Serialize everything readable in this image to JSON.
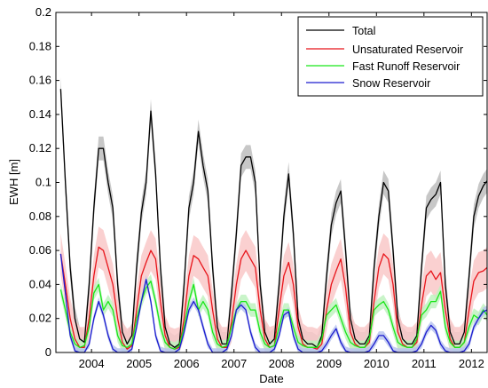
{
  "chart_data": {
    "type": "line",
    "xlabel": "Date",
    "ylabel": "EWH [m]",
    "xlim": [
      2003.25,
      2012.33
    ],
    "ylim": [
      0,
      0.2
    ],
    "x_ticks": [
      2004,
      2005,
      2006,
      2007,
      2008,
      2009,
      2010,
      2011,
      2012
    ],
    "y_ticks": [
      0,
      0.02,
      0.04,
      0.06,
      0.08,
      0.1,
      0.12,
      0.14,
      0.16,
      0.18,
      0.2
    ],
    "y_tick_labels": [
      "0",
      "0.02",
      "0.04",
      "0.06",
      "0.08",
      "0.1",
      "0.12",
      "0.14",
      "0.16",
      "0.18",
      "0.2"
    ],
    "grid": false,
    "legend_position": "top-right",
    "series": [
      {
        "name": "Total",
        "color": "#000000",
        "band_color": "#bdbdbd",
        "band_width": 0.007,
        "x": [
          2003.35,
          2003.45,
          2003.55,
          2003.65,
          2003.75,
          2003.85,
          2003.95,
          2004.05,
          2004.15,
          2004.25,
          2004.35,
          2004.45,
          2004.55,
          2004.65,
          2004.75,
          2004.85,
          2004.95,
          2005.05,
          2005.15,
          2005.25,
          2005.35,
          2005.45,
          2005.55,
          2005.65,
          2005.75,
          2005.85,
          2005.95,
          2006.05,
          2006.15,
          2006.25,
          2006.35,
          2006.45,
          2006.55,
          2006.65,
          2006.75,
          2006.85,
          2006.95,
          2007.05,
          2007.15,
          2007.25,
          2007.35,
          2007.45,
          2007.55,
          2007.65,
          2007.75,
          2007.85,
          2007.95,
          2008.05,
          2008.15,
          2008.25,
          2008.35,
          2008.45,
          2008.55,
          2008.65,
          2008.75,
          2008.85,
          2008.95,
          2009.05,
          2009.15,
          2009.25,
          2009.35,
          2009.45,
          2009.55,
          2009.65,
          2009.75,
          2009.85,
          2009.95,
          2010.05,
          2010.15,
          2010.25,
          2010.35,
          2010.45,
          2010.55,
          2010.65,
          2010.75,
          2010.85,
          2010.95,
          2011.05,
          2011.15,
          2011.25,
          2011.35,
          2011.45,
          2011.55,
          2011.65,
          2011.75,
          2011.85,
          2011.95,
          2012.05,
          2012.15,
          2012.25,
          2012.33
        ],
        "values": [
          0.155,
          0.1,
          0.05,
          0.02,
          0.008,
          0.006,
          0.04,
          0.085,
          0.12,
          0.12,
          0.1,
          0.085,
          0.04,
          0.012,
          0.005,
          0.01,
          0.05,
          0.082,
          0.1,
          0.142,
          0.105,
          0.05,
          0.015,
          0.005,
          0.003,
          0.005,
          0.04,
          0.085,
          0.1,
          0.13,
          0.11,
          0.095,
          0.05,
          0.015,
          0.005,
          0.005,
          0.035,
          0.07,
          0.11,
          0.115,
          0.115,
          0.1,
          0.04,
          0.012,
          0.005,
          0.008,
          0.04,
          0.08,
          0.105,
          0.07,
          0.02,
          0.008,
          0.005,
          0.005,
          0.003,
          0.01,
          0.045,
          0.075,
          0.088,
          0.095,
          0.06,
          0.02,
          0.008,
          0.005,
          0.005,
          0.01,
          0.05,
          0.08,
          0.1,
          0.095,
          0.06,
          0.02,
          0.008,
          0.005,
          0.005,
          0.01,
          0.05,
          0.085,
          0.09,
          0.093,
          0.1,
          0.04,
          0.012,
          0.005,
          0.005,
          0.012,
          0.045,
          0.08,
          0.092,
          0.098,
          0.101
        ]
      },
      {
        "name": "Unsaturated Reservoir",
        "color": "#e8141a",
        "band_color": "#f9c8c8",
        "band_width": 0.012,
        "x": [
          2003.35,
          2003.45,
          2003.55,
          2003.65,
          2003.75,
          2003.85,
          2003.95,
          2004.05,
          2004.15,
          2004.25,
          2004.35,
          2004.45,
          2004.55,
          2004.65,
          2004.75,
          2004.85,
          2004.95,
          2005.05,
          2005.15,
          2005.25,
          2005.35,
          2005.45,
          2005.55,
          2005.65,
          2005.75,
          2005.85,
          2005.95,
          2006.05,
          2006.15,
          2006.25,
          2006.35,
          2006.45,
          2006.55,
          2006.65,
          2006.75,
          2006.85,
          2006.95,
          2007.05,
          2007.15,
          2007.25,
          2007.35,
          2007.45,
          2007.55,
          2007.65,
          2007.75,
          2007.85,
          2007.95,
          2008.05,
          2008.15,
          2008.25,
          2008.35,
          2008.45,
          2008.55,
          2008.65,
          2008.75,
          2008.85,
          2008.95,
          2009.05,
          2009.15,
          2009.25,
          2009.35,
          2009.45,
          2009.55,
          2009.65,
          2009.75,
          2009.85,
          2009.95,
          2010.05,
          2010.15,
          2010.25,
          2010.35,
          2010.45,
          2010.55,
          2010.65,
          2010.75,
          2010.85,
          2010.95,
          2011.05,
          2011.15,
          2011.25,
          2011.35,
          2011.45,
          2011.55,
          2011.65,
          2011.75,
          2011.85,
          2011.95,
          2012.05,
          2012.15,
          2012.25,
          2012.33
        ],
        "values": [
          0.058,
          0.04,
          0.02,
          0.008,
          0.003,
          0.003,
          0.02,
          0.045,
          0.062,
          0.06,
          0.05,
          0.04,
          0.02,
          0.006,
          0.002,
          0.004,
          0.025,
          0.045,
          0.053,
          0.06,
          0.055,
          0.03,
          0.01,
          0.003,
          0.002,
          0.003,
          0.02,
          0.045,
          0.057,
          0.055,
          0.05,
          0.045,
          0.025,
          0.008,
          0.003,
          0.003,
          0.018,
          0.04,
          0.055,
          0.06,
          0.055,
          0.05,
          0.025,
          0.008,
          0.003,
          0.004,
          0.025,
          0.045,
          0.053,
          0.04,
          0.015,
          0.005,
          0.003,
          0.003,
          0.002,
          0.005,
          0.025,
          0.04,
          0.048,
          0.055,
          0.038,
          0.012,
          0.005,
          0.003,
          0.003,
          0.006,
          0.03,
          0.05,
          0.058,
          0.055,
          0.04,
          0.012,
          0.005,
          0.003,
          0.003,
          0.006,
          0.028,
          0.045,
          0.048,
          0.043,
          0.047,
          0.025,
          0.008,
          0.003,
          0.003,
          0.006,
          0.025,
          0.042,
          0.047,
          0.048,
          0.05
        ]
      },
      {
        "name": "Fast Runoff Reservoir",
        "color": "#19e619",
        "band_color": "#bff2bf",
        "band_width": 0.004,
        "x": [
          2003.35,
          2003.45,
          2003.55,
          2003.65,
          2003.75,
          2003.85,
          2003.95,
          2004.05,
          2004.15,
          2004.25,
          2004.35,
          2004.45,
          2004.55,
          2004.65,
          2004.75,
          2004.85,
          2004.95,
          2005.05,
          2005.15,
          2005.25,
          2005.35,
          2005.45,
          2005.55,
          2005.65,
          2005.75,
          2005.85,
          2005.95,
          2006.05,
          2006.15,
          2006.25,
          2006.35,
          2006.45,
          2006.55,
          2006.65,
          2006.75,
          2006.85,
          2006.95,
          2007.05,
          2007.15,
          2007.25,
          2007.35,
          2007.45,
          2007.55,
          2007.65,
          2007.75,
          2007.85,
          2007.95,
          2008.05,
          2008.15,
          2008.25,
          2008.35,
          2008.45,
          2008.55,
          2008.65,
          2008.75,
          2008.85,
          2008.95,
          2009.05,
          2009.15,
          2009.25,
          2009.35,
          2009.45,
          2009.55,
          2009.65,
          2009.75,
          2009.85,
          2009.95,
          2010.05,
          2010.15,
          2010.25,
          2010.35,
          2010.45,
          2010.55,
          2010.65,
          2010.75,
          2010.85,
          2010.95,
          2011.05,
          2011.15,
          2011.25,
          2011.35,
          2011.45,
          2011.55,
          2011.65,
          2011.75,
          2011.85,
          2011.95,
          2012.05,
          2012.15,
          2012.25,
          2012.33
        ],
        "values": [
          0.037,
          0.025,
          0.012,
          0.005,
          0.003,
          0.004,
          0.015,
          0.035,
          0.04,
          0.025,
          0.03,
          0.025,
          0.01,
          0.004,
          0.003,
          0.005,
          0.02,
          0.03,
          0.038,
          0.042,
          0.03,
          0.015,
          0.006,
          0.003,
          0.002,
          0.004,
          0.015,
          0.03,
          0.04,
          0.025,
          0.03,
          0.025,
          0.012,
          0.005,
          0.003,
          0.004,
          0.015,
          0.025,
          0.03,
          0.03,
          0.025,
          0.025,
          0.012,
          0.005,
          0.003,
          0.004,
          0.015,
          0.025,
          0.025,
          0.015,
          0.006,
          0.004,
          0.003,
          0.003,
          0.003,
          0.008,
          0.022,
          0.025,
          0.028,
          0.02,
          0.012,
          0.006,
          0.004,
          0.003,
          0.003,
          0.008,
          0.025,
          0.028,
          0.03,
          0.025,
          0.015,
          0.006,
          0.004,
          0.003,
          0.003,
          0.008,
          0.022,
          0.025,
          0.03,
          0.03,
          0.036,
          0.015,
          0.006,
          0.003,
          0.003,
          0.006,
          0.015,
          0.022,
          0.02,
          0.025,
          0.022
        ]
      },
      {
        "name": "Snow Reservoir",
        "color": "#1c1ccf",
        "band_color": "#b8c4ee",
        "band_width": 0.0025,
        "x": [
          2003.35,
          2003.45,
          2003.55,
          2003.65,
          2003.75,
          2003.85,
          2003.95,
          2004.05,
          2004.15,
          2004.25,
          2004.35,
          2004.45,
          2004.55,
          2004.65,
          2004.75,
          2004.85,
          2004.95,
          2005.05,
          2005.15,
          2005.25,
          2005.35,
          2005.45,
          2005.55,
          2005.65,
          2005.75,
          2005.85,
          2005.95,
          2006.05,
          2006.15,
          2006.25,
          2006.35,
          2006.45,
          2006.55,
          2006.65,
          2006.75,
          2006.85,
          2006.95,
          2007.05,
          2007.15,
          2007.25,
          2007.35,
          2007.45,
          2007.55,
          2007.65,
          2007.75,
          2007.85,
          2007.95,
          2008.05,
          2008.15,
          2008.25,
          2008.35,
          2008.45,
          2008.55,
          2008.65,
          2008.75,
          2008.85,
          2008.95,
          2009.05,
          2009.15,
          2009.25,
          2009.35,
          2009.45,
          2009.55,
          2009.65,
          2009.75,
          2009.85,
          2009.95,
          2010.05,
          2010.15,
          2010.25,
          2010.35,
          2010.45,
          2010.55,
          2010.65,
          2010.75,
          2010.85,
          2010.95,
          2011.05,
          2011.15,
          2011.25,
          2011.35,
          2011.45,
          2011.55,
          2011.65,
          2011.75,
          2011.85,
          2011.95,
          2012.05,
          2012.15,
          2012.25,
          2012.33
        ],
        "values": [
          0.058,
          0.035,
          0.01,
          0.001,
          0,
          0,
          0.005,
          0.02,
          0.03,
          0.022,
          0.01,
          0.002,
          0,
          0,
          0,
          0.002,
          0.015,
          0.03,
          0.043,
          0.03,
          0.01,
          0.001,
          0,
          0,
          0,
          0.002,
          0.012,
          0.025,
          0.03,
          0.025,
          0.015,
          0.005,
          0,
          0,
          0,
          0.002,
          0.01,
          0.025,
          0.028,
          0.025,
          0.012,
          0.003,
          0,
          0,
          0,
          0.002,
          0.01,
          0.022,
          0.024,
          0.01,
          0.002,
          0,
          0,
          0,
          0,
          0.001,
          0.005,
          0.01,
          0.014,
          0.006,
          0.001,
          0,
          0,
          0,
          0,
          0.001,
          0.005,
          0.01,
          0.01,
          0.006,
          0.001,
          0,
          0,
          0,
          0,
          0.001,
          0.005,
          0.012,
          0.016,
          0.013,
          0.005,
          0.001,
          0,
          0,
          0,
          0.001,
          0.005,
          0.015,
          0.02,
          0.024,
          0.025
        ]
      }
    ]
  }
}
